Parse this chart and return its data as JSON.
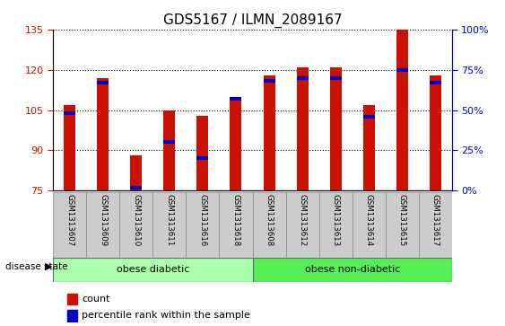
{
  "title": "GDS5167 / ILMN_2089167",
  "samples": [
    "GSM1313607",
    "GSM1313609",
    "GSM1313610",
    "GSM1313611",
    "GSM1313616",
    "GSM1313618",
    "GSM1313608",
    "GSM1313612",
    "GSM1313613",
    "GSM1313614",
    "GSM1313615",
    "GSM1313617"
  ],
  "counts": [
    107,
    117,
    88,
    105,
    103,
    110,
    118,
    121,
    121,
    107,
    135,
    118
  ],
  "percentile_ranks": [
    48,
    67,
    2,
    30,
    20,
    57,
    68,
    70,
    70,
    46,
    75,
    67
  ],
  "ylim_left": [
    75,
    135
  ],
  "ylim_right": [
    0,
    100
  ],
  "yticks_left": [
    75,
    90,
    105,
    120,
    135
  ],
  "yticks_right": [
    0,
    25,
    50,
    75,
    100
  ],
  "bar_color": "#cc1100",
  "percentile_color": "#0000cc",
  "disease_groups": [
    {
      "label": "obese diabetic",
      "start": 0,
      "end": 6,
      "color": "#aaffaa"
    },
    {
      "label": "obese non-diabetic",
      "start": 6,
      "end": 12,
      "color": "#55ee55"
    }
  ],
  "disease_label": "disease state",
  "legend_count_label": "count",
  "legend_percentile_label": "percentile rank within the sample",
  "bar_width": 0.35,
  "grid_color": "black",
  "tick_label_color_left": "#cc1100",
  "tick_label_color_right": "#0000cc",
  "title_fontsize": 11,
  "tick_fontsize": 8,
  "label_bg_color": "#cccccc"
}
